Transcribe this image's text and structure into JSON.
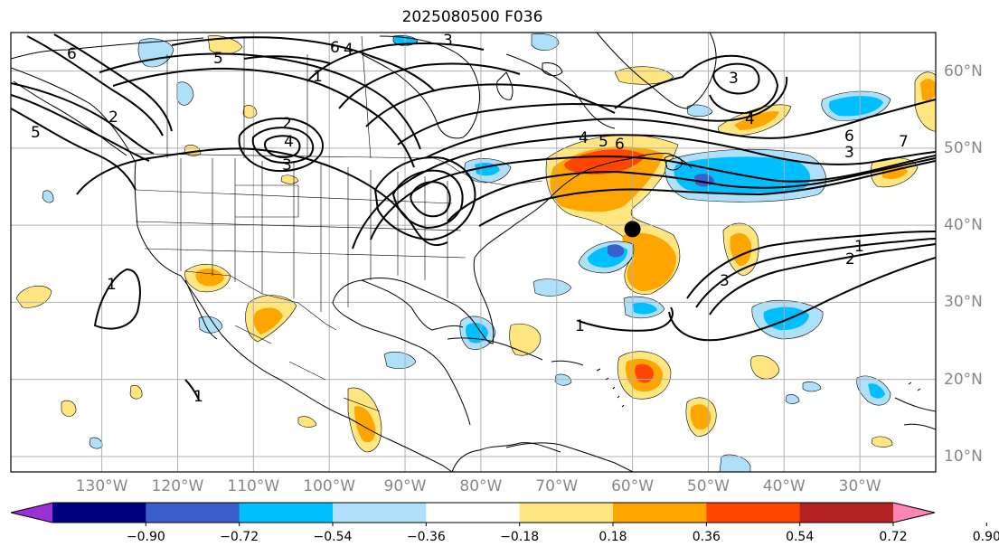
{
  "title": "2025080500 F036",
  "map": {
    "lon_range": [
      -142,
      -20
    ],
    "lat_range": [
      8,
      65
    ],
    "longitude_labels": [
      "130°W",
      "120°W",
      "110°W",
      "100°W",
      "90°W",
      "80°W",
      "70°W",
      "60°W",
      "50°W",
      "40°W",
      "30°W"
    ],
    "longitude_values": [
      -130,
      -120,
      -110,
      -100,
      -90,
      -80,
      -70,
      -60,
      -50,
      -40,
      -30
    ],
    "latitude_labels": [
      "60°N",
      "50°N",
      "40°N",
      "30°N",
      "20°N",
      "10°N"
    ],
    "latitude_values": [
      60,
      50,
      40,
      30,
      20,
      10
    ],
    "gridlines": true,
    "marker": {
      "lon": -60,
      "lat": 39.5,
      "symbol": "black-dot"
    },
    "contour_labels": [
      "6",
      "5",
      "6",
      "4",
      "3",
      "2",
      "1",
      "2",
      "4",
      "3",
      "1",
      "4",
      "5",
      "6",
      "6",
      "7",
      "3",
      "4",
      "3",
      "5",
      "1",
      "2",
      "3",
      "1",
      "1"
    ]
  },
  "colorbar": {
    "tick_labels": [
      "−0.90",
      "−0.72",
      "−0.54",
      "−0.36",
      "−0.18",
      "0.18",
      "0.36",
      "0.54",
      "0.72",
      "0.90"
    ],
    "colors": [
      "#9b30d6",
      "#000080",
      "#3a5fcd",
      "#00bfff",
      "#aee0fa",
      "#ffffff",
      "#ffe680",
      "#ffa500",
      "#ff4500",
      "#b22222",
      "#ff85b3"
    ],
    "extend": "both"
  },
  "colors": {
    "land_line": "#000000",
    "grid": "#b0b0b0",
    "label_gray": "#888888"
  }
}
